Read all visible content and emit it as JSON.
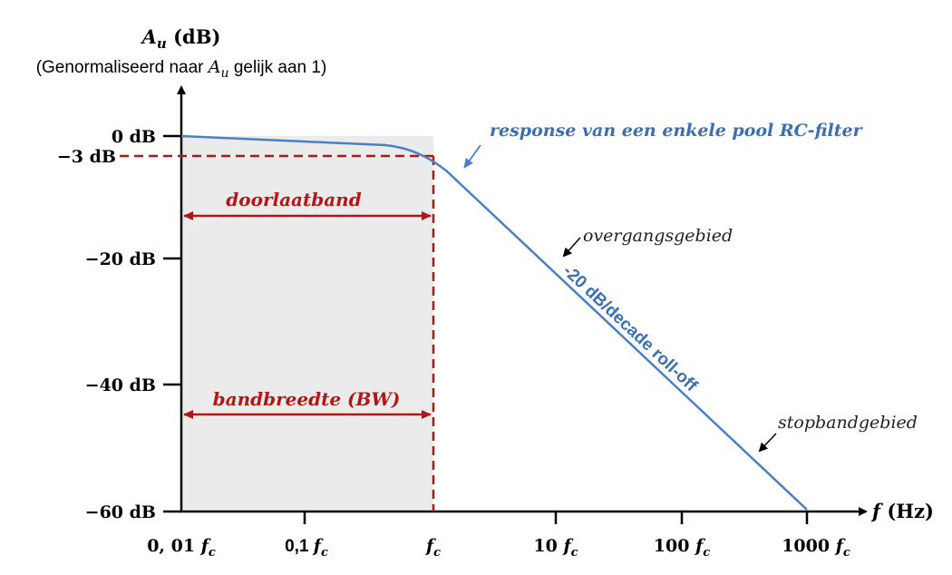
{
  "colors": {
    "curve": "#4a7fc4",
    "annotation_red": "#b01818",
    "label_blue": "#3a6fb0",
    "band_fill": "#ebebeb",
    "axis": "#000000"
  },
  "axes": {
    "y_title": "A_u (dB)",
    "y_title_main": "A",
    "y_title_sub": "u",
    "y_title_unit": " (dB)",
    "y_subtitle_pre": "(Genormaliseerd naar ",
    "y_subtitle_var": "A",
    "y_subtitle_sub": "u",
    "y_subtitle_post": " gelijk aan 1)",
    "x_title_pre": "f",
    "x_title_unit": " (Hz)",
    "y_ticks": [
      "0 dB",
      "−3 dB",
      "−20 dB",
      "−40 dB",
      "−60 dB"
    ],
    "x_ticks": [
      {
        "num": "0, 01 ",
        "var": "f",
        "sub": "c"
      },
      {
        "num": "0,1 ",
        "var": "f",
        "sub": "c"
      },
      {
        "num": "",
        "var": "f",
        "sub": "c"
      },
      {
        "num": "10 ",
        "var": "f",
        "sub": "c"
      },
      {
        "num": "100 ",
        "var": "f",
        "sub": "c"
      },
      {
        "num": "1000 ",
        "var": "f",
        "sub": "c"
      }
    ]
  },
  "annotations": {
    "passband": "doorlaatband",
    "bandwidth": "bandbreedte (BW)",
    "response": "response van een enkele pool RC-filter",
    "transition": "overgangsgebied",
    "stopband": "stopbandgebied",
    "rolloff": "-20 dB/decade roll-off"
  }
}
